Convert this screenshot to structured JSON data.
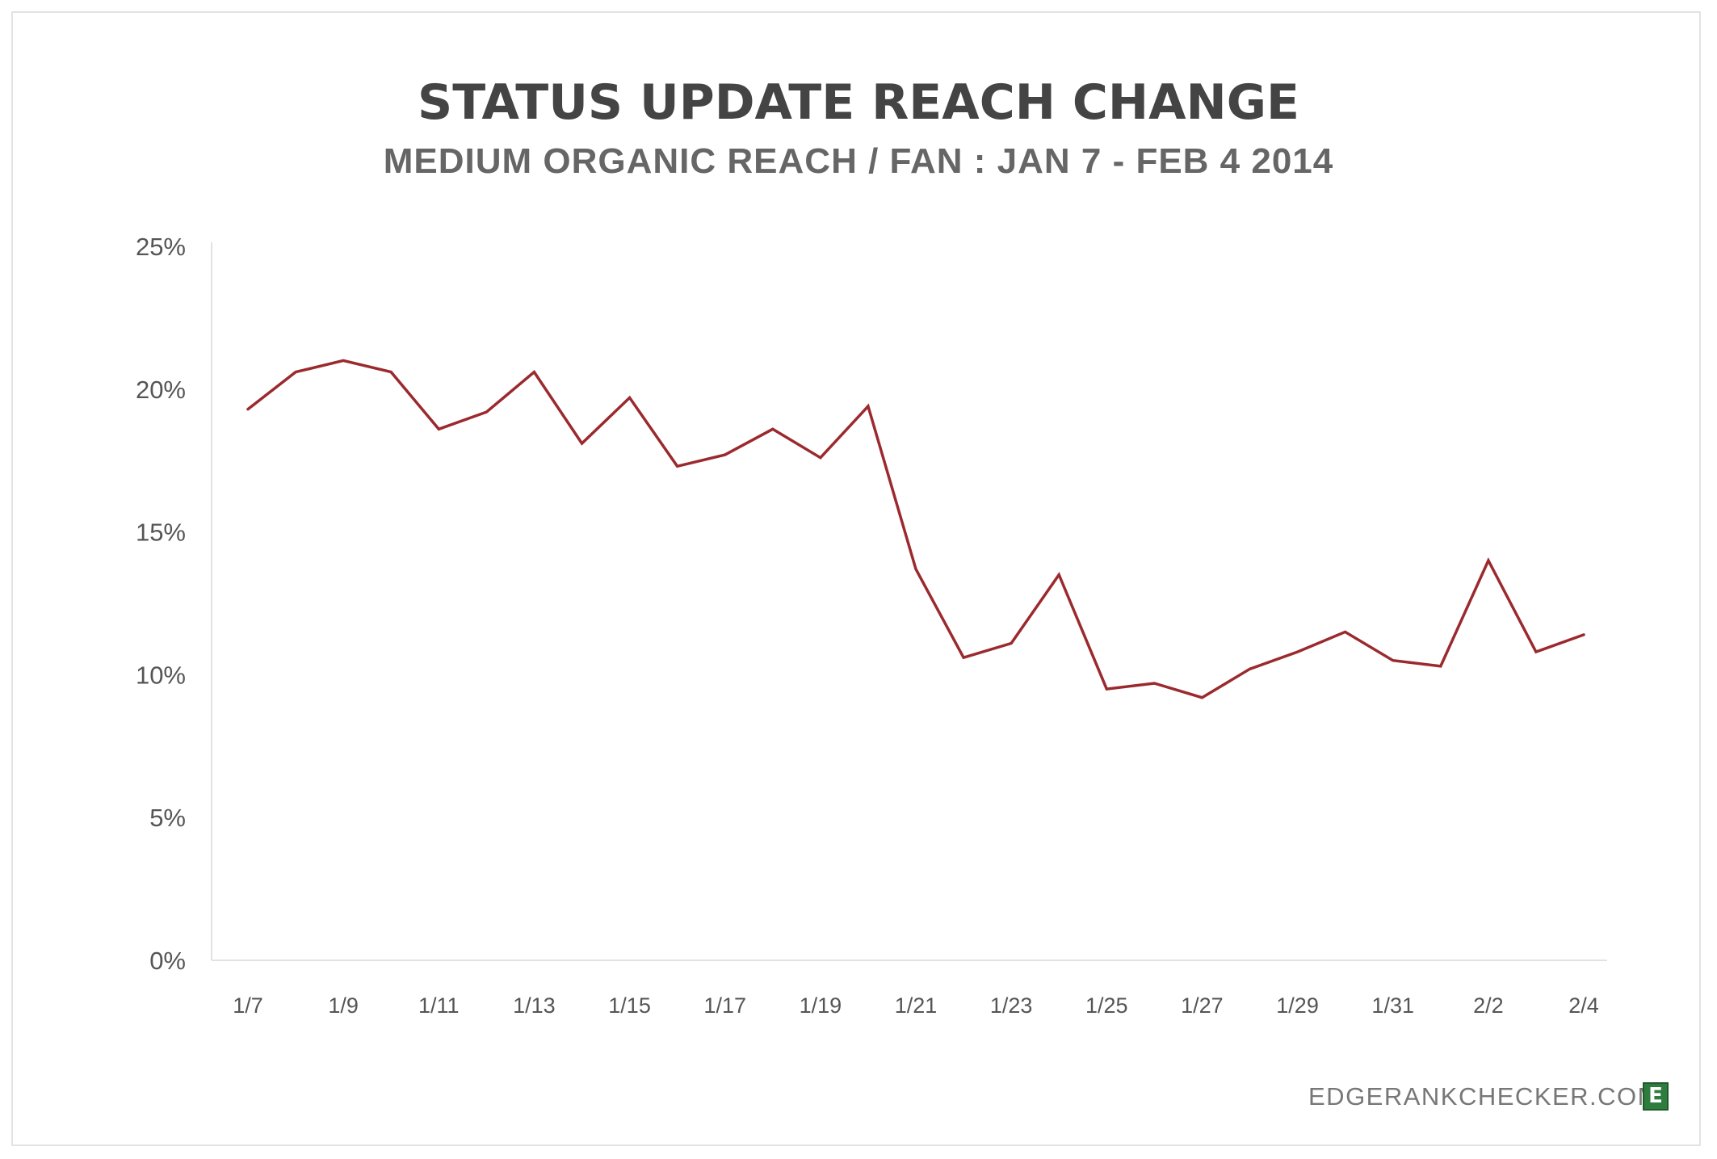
{
  "chart_data": {
    "type": "line",
    "title": "STATUS UPDATE REACH CHANGE",
    "subtitle": "MEDIUM ORGANIC REACH / FAN : JAN 7 - FEB 4 2014",
    "xlabel": "",
    "ylabel": "",
    "ylim": [
      0,
      25
    ],
    "y_ticks": [
      "0%",
      "5%",
      "10%",
      "15%",
      "20%",
      "25%"
    ],
    "x_tick_labels": [
      "1/7",
      "1/9",
      "1/11",
      "1/13",
      "1/15",
      "1/17",
      "1/19",
      "1/21",
      "1/23",
      "1/25",
      "1/27",
      "1/29",
      "1/31",
      "2/2",
      "2/4"
    ],
    "grid": false,
    "legend": "none",
    "line_color": "#9b2a2e",
    "x": [
      "1/7",
      "1/8",
      "1/9",
      "1/10",
      "1/11",
      "1/12",
      "1/13",
      "1/14",
      "1/15",
      "1/16",
      "1/17",
      "1/18",
      "1/19",
      "1/20",
      "1/21",
      "1/22",
      "1/23",
      "1/24",
      "1/25",
      "1/26",
      "1/27",
      "1/28",
      "1/29",
      "1/30",
      "1/31",
      "2/1",
      "2/2",
      "2/3",
      "2/4"
    ],
    "series": [
      {
        "values": [
          19.3,
          20.6,
          21.0,
          20.6,
          18.6,
          19.2,
          20.6,
          18.1,
          19.7,
          17.3,
          17.7,
          18.6,
          17.6,
          19.4,
          13.7,
          10.6,
          11.1,
          13.5,
          9.5,
          9.7,
          9.2,
          10.2,
          10.8,
          11.5,
          10.5,
          10.3,
          14.0,
          10.8,
          11.4
        ]
      }
    ]
  },
  "footer": {
    "brand_text": "EDGERANKCHECKER.COM",
    "brand_logo_letter": "E"
  }
}
